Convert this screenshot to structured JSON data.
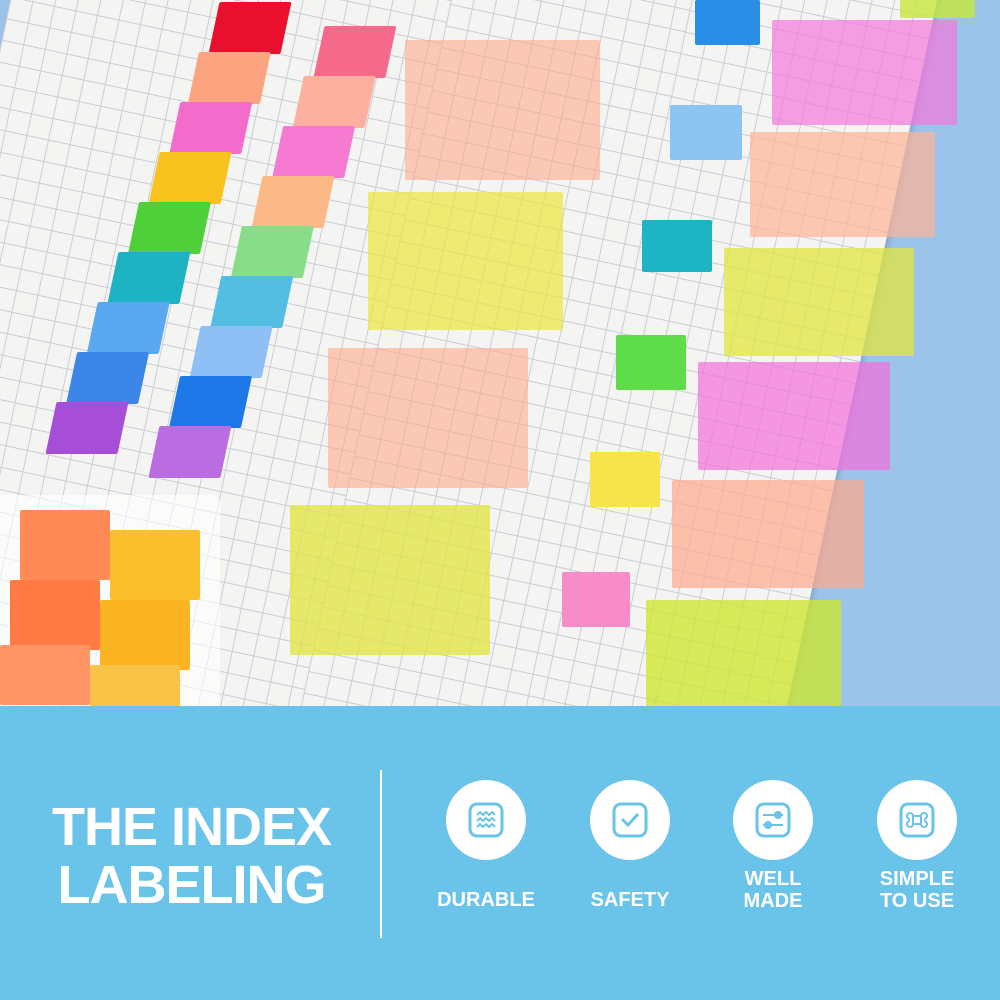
{
  "banner": {
    "title_line1": "THE INDEX",
    "title_line2": "LABELING",
    "background_color": "#6ac3e8",
    "features": [
      {
        "icon": "wavy-lines-icon",
        "label": "DURABLE"
      },
      {
        "icon": "checkbox-icon",
        "label": "SAFETY"
      },
      {
        "icon": "sliders-icon",
        "label": "WELL MADE"
      },
      {
        "icon": "command-key-icon",
        "label": "SIMPLE TO USE"
      }
    ]
  },
  "photo": {
    "tab_colors": [
      "#e8102c",
      "#ff9f7f",
      "#f26fc3",
      "#f7c21a",
      "#4ccc3a",
      "#1cb0c0",
      "#4fa0ee",
      "#2e7fe0",
      "#a64ed8",
      "#fbb79f",
      "#e7e547"
    ]
  }
}
